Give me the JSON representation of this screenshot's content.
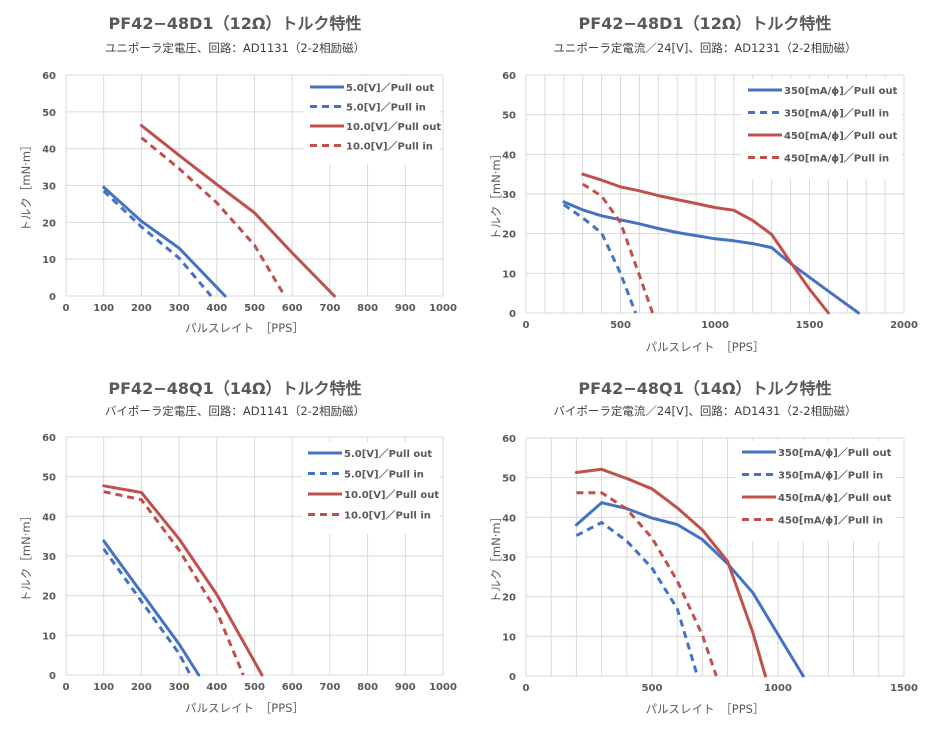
{
  "colors": {
    "blue": "#4472c4",
    "red": "#c0504d",
    "grid": "#d9d9d9",
    "text": "#595959"
  },
  "chart_data": [
    {
      "type": "line",
      "title": "PF42−48D1（12Ω）トルク特性",
      "subtitle": "ユニポーラ定電圧、回路：AD1131（2-2相励磁）",
      "xlabel": "パルスレイト　［PPS］",
      "ylabel": "トルク［mN·m］",
      "xlim": [
        0,
        1000
      ],
      "ylim": [
        0,
        60
      ],
      "xticks": [
        0,
        100,
        200,
        300,
        400,
        500,
        600,
        700,
        800,
        900,
        1000
      ],
      "xtick_labels": [
        "0",
        "100",
        "200",
        "300",
        "400",
        "500",
        "600",
        "700",
        "800",
        "900",
        "1000"
      ],
      "yticks": [
        0,
        10,
        20,
        30,
        40,
        50,
        60
      ],
      "ytick_labels": [
        "0",
        "10",
        "20",
        "30",
        "40",
        "50",
        "60"
      ],
      "grid": true,
      "legend_position": "top-right",
      "series": [
        {
          "name": "5.0[V]／Pull out",
          "color": "blue",
          "dash": false,
          "x": [
            100,
            200,
            300,
            422
          ],
          "y": [
            29.5,
            20.3,
            13,
            0
          ]
        },
        {
          "name": "5.0[V]／Pull in",
          "color": "blue",
          "dash": true,
          "x": [
            100,
            200,
            300,
            385
          ],
          "y": [
            28.5,
            18.8,
            10.3,
            0
          ]
        },
        {
          "name": "10.0[V]／Pull out",
          "color": "red",
          "dash": false,
          "x": [
            200,
            300,
            400,
            500,
            600,
            712
          ],
          "y": [
            46.3,
            38.2,
            30.3,
            22.6,
            11.7,
            0
          ]
        },
        {
          "name": "10.0[V]／Pull in",
          "color": "red",
          "dash": true,
          "x": [
            200,
            300,
            400,
            500,
            580
          ],
          "y": [
            43,
            34.6,
            25.3,
            13.8,
            0
          ]
        }
      ]
    },
    {
      "type": "line",
      "title": "PF42−48D1（12Ω）トルク特性",
      "subtitle": "ユニポーラ定電流／24[V]、回路：AD1231（2-2相励磁）",
      "xlabel": "パルスレイト　［PPS］",
      "ylabel": "トルク［mN·m］",
      "xlim": [
        0,
        2000
      ],
      "ylim": [
        0,
        60
      ],
      "xticks": [
        0,
        500,
        1000,
        1500,
        2000
      ],
      "xtick_labels": [
        "0",
        "500",
        "1000",
        "1500",
        "2000"
      ],
      "minor_xgrid_step": 100,
      "yticks": [
        0,
        10,
        20,
        30,
        40,
        50,
        60
      ],
      "ytick_labels": [
        "0",
        "10",
        "20",
        "30",
        "40",
        "50",
        "60"
      ],
      "grid": true,
      "legend_position": "top-right",
      "series": [
        {
          "name": "350[mA/ϕ]／Pull out",
          "color": "blue",
          "dash": false,
          "x": [
            200,
            300,
            400,
            500,
            600,
            700,
            800,
            900,
            1000,
            1100,
            1200,
            1300,
            1400,
            1500,
            1600,
            1760
          ],
          "y": [
            28,
            26,
            24.5,
            23.5,
            22.5,
            21.3,
            20.3,
            19.5,
            18.7,
            18.2,
            17.5,
            16.5,
            12.5,
            9,
            5.5,
            0
          ]
        },
        {
          "name": "350[mA/ϕ]／Pull in",
          "color": "blue",
          "dash": true,
          "x": [
            200,
            300,
            400,
            500,
            580
          ],
          "y": [
            27.3,
            24,
            20.2,
            10,
            0
          ]
        },
        {
          "name": "450[mA/ϕ]／Pull out",
          "color": "red",
          "dash": false,
          "x": [
            300,
            400,
            500,
            600,
            700,
            800,
            900,
            1000,
            1100,
            1200,
            1300,
            1400,
            1500,
            1600
          ],
          "y": [
            35,
            33.5,
            31.8,
            30.8,
            29.6,
            28.6,
            27.6,
            26.6,
            25.9,
            23.3,
            19.8,
            12.8,
            6,
            0
          ]
        },
        {
          "name": "450[mA/ϕ]／Pull in",
          "color": "red",
          "dash": true,
          "x": [
            300,
            400,
            500,
            600,
            670
          ],
          "y": [
            32.5,
            29.5,
            22.8,
            9.5,
            0
          ]
        }
      ]
    },
    {
      "type": "line",
      "title": "PF42−48Q1（14Ω）トルク特性",
      "subtitle": "バイポーラ定電圧、回路：AD1141（2-2相励磁）",
      "xlabel": "パルスレイト　［PPS］",
      "ylabel": "トルク［mN·m］",
      "xlim": [
        0,
        1000
      ],
      "ylim": [
        0,
        60
      ],
      "xticks": [
        0,
        100,
        200,
        300,
        400,
        500,
        600,
        700,
        800,
        900,
        1000
      ],
      "xtick_labels": [
        "0",
        "100",
        "200",
        "300",
        "400",
        "500",
        "600",
        "700",
        "800",
        "900",
        "1000"
      ],
      "yticks": [
        0,
        10,
        20,
        30,
        40,
        50,
        60
      ],
      "ytick_labels": [
        "0",
        "10",
        "20",
        "30",
        "40",
        "50",
        "60"
      ],
      "grid": true,
      "legend_position": "top-right",
      "series": [
        {
          "name": "5.0[V]／Pull out",
          "color": "blue",
          "dash": false,
          "x": [
            100,
            200,
            300,
            352
          ],
          "y": [
            33.8,
            20.8,
            7.8,
            0
          ]
        },
        {
          "name": "5.0[V]／Pull in",
          "color": "blue",
          "dash": true,
          "x": [
            100,
            200,
            300,
            330
          ],
          "y": [
            31.8,
            18.6,
            5.4,
            0
          ]
        },
        {
          "name": "10.0[V]／Pull out",
          "color": "red",
          "dash": false,
          "x": [
            100,
            200,
            300,
            400,
            520
          ],
          "y": [
            47.7,
            46,
            34.3,
            20.3,
            0
          ]
        },
        {
          "name": "10.0[V]／Pull in",
          "color": "red",
          "dash": true,
          "x": [
            100,
            200,
            300,
            400,
            470
          ],
          "y": [
            46.2,
            44.2,
            31.5,
            16,
            0
          ]
        }
      ]
    },
    {
      "type": "line",
      "title": "PF42−48Q1（14Ω）トルク特性",
      "subtitle": "バイポーラ定電流／24[V]、回路：AD1431（2-2相励磁）",
      "xlabel": "パルスレイト　［PPS］",
      "ylabel": "トルク［mN·m］",
      "xlim": [
        0,
        1500
      ],
      "ylim": [
        0,
        60
      ],
      "xticks": [
        0,
        500,
        1000,
        1500
      ],
      "xtick_labels": [
        "0",
        "500",
        "1000",
        "1500"
      ],
      "minor_xgrid_step": 100,
      "yticks": [
        0,
        10,
        20,
        30,
        40,
        50,
        60
      ],
      "ytick_labels": [
        "0",
        "10",
        "20",
        "30",
        "40",
        "50",
        "60"
      ],
      "grid": true,
      "legend_position": "top-right",
      "series": [
        {
          "name": "350[mA/ϕ]／Pull out",
          "color": "blue",
          "dash": false,
          "x": [
            200,
            300,
            400,
            500,
            600,
            700,
            800,
            900,
            1000,
            1100
          ],
          "y": [
            38.1,
            43.7,
            42.2,
            39.8,
            38.2,
            34.4,
            28.3,
            21,
            10.5,
            0
          ]
        },
        {
          "name": "350[mA/ϕ]／Pull in",
          "color": "blue",
          "dash": true,
          "x": [
            200,
            300,
            400,
            500,
            600,
            680
          ],
          "y": [
            35.4,
            38.7,
            34,
            27.2,
            17,
            0
          ]
        },
        {
          "name": "450[mA/ϕ]／Pull out",
          "color": "red",
          "dash": false,
          "x": [
            200,
            300,
            400,
            500,
            600,
            700,
            800,
            900,
            950
          ],
          "y": [
            51.3,
            52.1,
            49.8,
            47.2,
            42.4,
            36.8,
            28.9,
            11,
            0
          ]
        },
        {
          "name": "450[mA/ϕ]／Pull in",
          "color": "red",
          "dash": true,
          "x": [
            200,
            300,
            400,
            500,
            600,
            700,
            755
          ],
          "y": [
            46.2,
            46.2,
            42.1,
            34.8,
            24,
            10.3,
            0
          ]
        }
      ]
    }
  ]
}
